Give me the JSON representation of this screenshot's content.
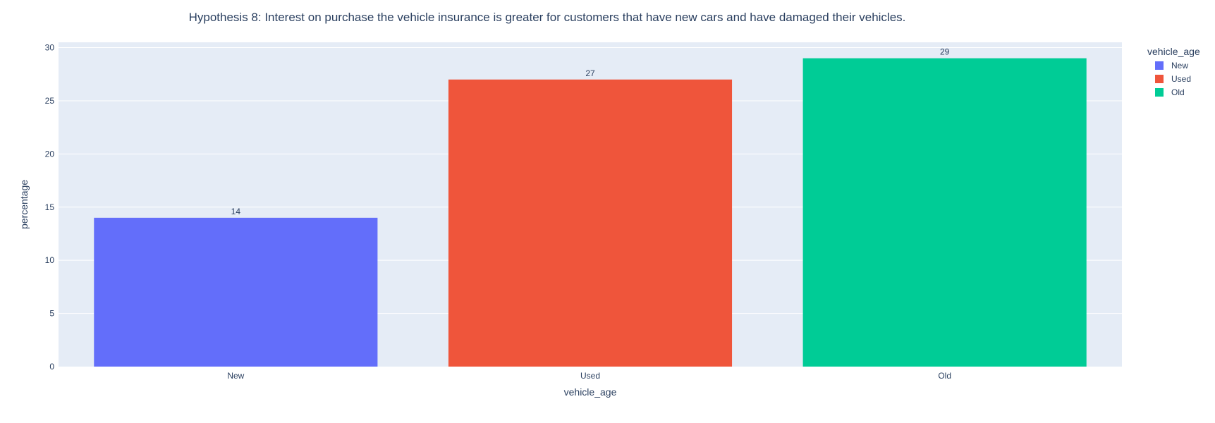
{
  "chart_data": {
    "type": "bar",
    "title": "Hypothesis 8: Interest on purchase the vehicle insurance is greater for customers that have new cars and have damaged their vehicles.",
    "xlabel": "vehicle_age",
    "ylabel": "percentage",
    "categories": [
      "New",
      "Used",
      "Old"
    ],
    "values": [
      14,
      27,
      29
    ],
    "data_labels": [
      "14",
      "27",
      "29"
    ],
    "colors": [
      "#636efa",
      "#ef553b",
      "#00cc96"
    ],
    "ylim": [
      0,
      30.5
    ],
    "yticks": [
      0,
      5,
      10,
      15,
      20,
      25,
      30
    ],
    "ytick_labels": [
      "0",
      "5",
      "10",
      "15",
      "20",
      "25",
      "30"
    ],
    "grid": true,
    "legend": {
      "title": "vehicle_age",
      "placement": "top-right",
      "entries": [
        "New",
        "Used",
        "Old"
      ]
    },
    "plot_background": "#e5ecf6",
    "grid_color": "#ffffff"
  }
}
